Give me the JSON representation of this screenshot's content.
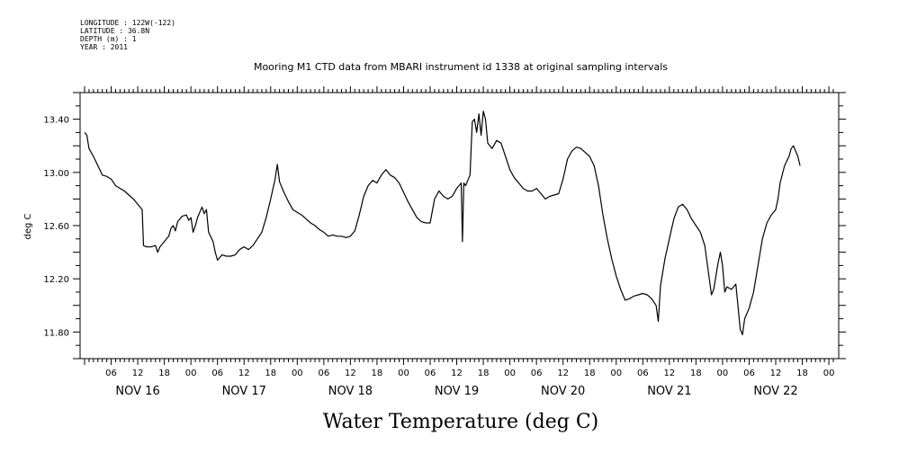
{
  "header_info": [
    "LONGITUDE : 122W(-122)",
    "LATITUDE : 36.8N",
    "DEPTH (m) : 1",
    "YEAR : 2011"
  ],
  "chart_data": {
    "type": "line",
    "title": "Mooring M1 CTD data from MBARI instrument id 1338 at original sampling intervals",
    "xlabel": "Water Temperature (deg C)",
    "ylabel": "deg C",
    "ylim": [
      11.6,
      13.6
    ],
    "yticks": [
      "13.40",
      "13.00",
      "12.60",
      "12.20",
      "11.80"
    ],
    "xlim_hours": [
      0,
      169
    ],
    "x_hour_labels": [
      "06",
      "12",
      "18",
      "00",
      "06",
      "12",
      "18",
      "00",
      "06",
      "12",
      "18",
      "00",
      "06",
      "12",
      "18",
      "00",
      "06",
      "12",
      "18",
      "00",
      "06",
      "12",
      "18",
      "00",
      "06",
      "12",
      "18",
      "00"
    ],
    "x_day_labels": [
      "NOV 16",
      "NOV 17",
      "NOV 18",
      "NOV 19",
      "NOV 20",
      "NOV 21",
      "NOV 22"
    ],
    "grid": false,
    "series": [
      {
        "color": "#000000",
        "points": [
          [
            0,
            13.3
          ],
          [
            0.5,
            13.28
          ],
          [
            1,
            13.18
          ],
          [
            2,
            13.12
          ],
          [
            3,
            13.05
          ],
          [
            4,
            12.98
          ],
          [
            5,
            12.97
          ],
          [
            6,
            12.95
          ],
          [
            7,
            12.9
          ],
          [
            8,
            12.88
          ],
          [
            9,
            12.86
          ],
          [
            10,
            12.83
          ],
          [
            11,
            12.8
          ],
          [
            12,
            12.76
          ],
          [
            13,
            12.72
          ],
          [
            13.3,
            12.45
          ],
          [
            14,
            12.44
          ],
          [
            15,
            12.44
          ],
          [
            16,
            12.45
          ],
          [
            16.5,
            12.4
          ],
          [
            17,
            12.44
          ],
          [
            18,
            12.48
          ],
          [
            19,
            12.52
          ],
          [
            19.5,
            12.58
          ],
          [
            20,
            12.6
          ],
          [
            20.5,
            12.56
          ],
          [
            21,
            12.63
          ],
          [
            22,
            12.67
          ],
          [
            23,
            12.68
          ],
          [
            23.5,
            12.64
          ],
          [
            24,
            12.66
          ],
          [
            24.5,
            12.55
          ],
          [
            25,
            12.6
          ],
          [
            25.5,
            12.66
          ],
          [
            26,
            12.7
          ],
          [
            26.5,
            12.74
          ],
          [
            27,
            12.69
          ],
          [
            27.5,
            12.72
          ],
          [
            28,
            12.55
          ],
          [
            29,
            12.48
          ],
          [
            29.5,
            12.4
          ],
          [
            30,
            12.34
          ],
          [
            31,
            12.38
          ],
          [
            32,
            12.37
          ],
          [
            33,
            12.37
          ],
          [
            34,
            12.38
          ],
          [
            35,
            12.42
          ],
          [
            36,
            12.44
          ],
          [
            37,
            12.42
          ],
          [
            38,
            12.45
          ],
          [
            39,
            12.5
          ],
          [
            40,
            12.55
          ],
          [
            41,
            12.66
          ],
          [
            42,
            12.8
          ],
          [
            43,
            12.95
          ],
          [
            43.5,
            13.06
          ],
          [
            44,
            12.93
          ],
          [
            45,
            12.85
          ],
          [
            46,
            12.78
          ],
          [
            47,
            12.72
          ],
          [
            48,
            12.7
          ],
          [
            49,
            12.68
          ],
          [
            50,
            12.65
          ],
          [
            51,
            12.62
          ],
          [
            52,
            12.6
          ],
          [
            53,
            12.57
          ],
          [
            54,
            12.55
          ],
          [
            55,
            12.52
          ],
          [
            56,
            12.53
          ],
          [
            57,
            12.52
          ],
          [
            58,
            12.52
          ],
          [
            59,
            12.51
          ],
          [
            60,
            12.52
          ],
          [
            61,
            12.56
          ],
          [
            62,
            12.68
          ],
          [
            63,
            12.82
          ],
          [
            64,
            12.9
          ],
          [
            65,
            12.94
          ],
          [
            66,
            12.92
          ],
          [
            67,
            12.98
          ],
          [
            68,
            13.02
          ],
          [
            69,
            12.98
          ],
          [
            70,
            12.96
          ],
          [
            71,
            12.92
          ],
          [
            72,
            12.85
          ],
          [
            73,
            12.78
          ],
          [
            74,
            12.72
          ],
          [
            75,
            12.66
          ],
          [
            76,
            12.63
          ],
          [
            77,
            12.62
          ],
          [
            78,
            12.62
          ],
          [
            79,
            12.8
          ],
          [
            80,
            12.86
          ],
          [
            81,
            12.82
          ],
          [
            82,
            12.8
          ],
          [
            83,
            12.82
          ],
          [
            84,
            12.88
          ],
          [
            85,
            12.92
          ],
          [
            85.3,
            12.48
          ],
          [
            85.6,
            12.92
          ],
          [
            86,
            12.9
          ],
          [
            87,
            12.98
          ],
          [
            87.5,
            13.38
          ],
          [
            88,
            13.4
          ],
          [
            88.5,
            13.3
          ],
          [
            89,
            13.44
          ],
          [
            89.5,
            13.28
          ],
          [
            90,
            13.46
          ],
          [
            90.5,
            13.4
          ],
          [
            91,
            13.22
          ],
          [
            92,
            13.18
          ],
          [
            93,
            13.24
          ],
          [
            94,
            13.22
          ],
          [
            95,
            13.12
          ],
          [
            96,
            13.02
          ],
          [
            97,
            12.96
          ],
          [
            98,
            12.92
          ],
          [
            99,
            12.88
          ],
          [
            100,
            12.86
          ],
          [
            101,
            12.86
          ],
          [
            102,
            12.88
          ],
          [
            103,
            12.84
          ],
          [
            104,
            12.8
          ],
          [
            105,
            12.82
          ],
          [
            106,
            12.83
          ],
          [
            107,
            12.84
          ],
          [
            108,
            12.95
          ],
          [
            109,
            13.1
          ],
          [
            110,
            13.16
          ],
          [
            111,
            13.19
          ],
          [
            112,
            13.18
          ],
          [
            113,
            13.15
          ],
          [
            114,
            13.12
          ],
          [
            115,
            13.05
          ],
          [
            116,
            12.9
          ],
          [
            117,
            12.68
          ],
          [
            118,
            12.5
          ],
          [
            119,
            12.35
          ],
          [
            120,
            12.22
          ],
          [
            121,
            12.12
          ],
          [
            122,
            12.04
          ],
          [
            123,
            12.05
          ],
          [
            124,
            12.07
          ],
          [
            125,
            12.08
          ],
          [
            126,
            12.09
          ],
          [
            127,
            12.08
          ],
          [
            128,
            12.05
          ],
          [
            129,
            12.0
          ],
          [
            129.5,
            11.88
          ],
          [
            130,
            12.15
          ],
          [
            131,
            12.35
          ],
          [
            132,
            12.5
          ],
          [
            133,
            12.65
          ],
          [
            134,
            12.74
          ],
          [
            135,
            12.76
          ],
          [
            136,
            12.72
          ],
          [
            137,
            12.65
          ],
          [
            138,
            12.6
          ],
          [
            139,
            12.55
          ],
          [
            140,
            12.45
          ],
          [
            141,
            12.2
          ],
          [
            141.5,
            12.08
          ],
          [
            142,
            12.12
          ],
          [
            143,
            12.32
          ],
          [
            143.5,
            12.4
          ],
          [
            144,
            12.3
          ],
          [
            144.5,
            12.1
          ],
          [
            145,
            12.14
          ],
          [
            146,
            12.12
          ],
          [
            147,
            12.16
          ],
          [
            148,
            11.82
          ],
          [
            148.5,
            11.78
          ],
          [
            149,
            11.9
          ],
          [
            150,
            11.98
          ],
          [
            151,
            12.1
          ],
          [
            152,
            12.3
          ],
          [
            153,
            12.5
          ],
          [
            154,
            12.62
          ],
          [
            155,
            12.68
          ],
          [
            156,
            12.72
          ],
          [
            156.5,
            12.8
          ],
          [
            157,
            12.92
          ],
          [
            158,
            13.05
          ],
          [
            159,
            13.12
          ],
          [
            159.5,
            13.18
          ],
          [
            160,
            13.2
          ],
          [
            161,
            13.12
          ],
          [
            161.5,
            13.05
          ]
        ]
      }
    ]
  }
}
